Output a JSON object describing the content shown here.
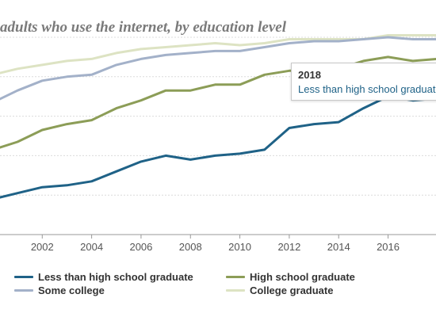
{
  "chart_data": {
    "type": "line",
    "title": "adults who use the internet, by education level",
    "x": [
      2000,
      2001,
      2002,
      2003,
      2004,
      2005,
      2006,
      2007,
      2008,
      2009,
      2010,
      2011,
      2012,
      2013,
      2014,
      2015,
      2016,
      2017,
      2018
    ],
    "x_ticks": [
      "2002",
      "2004",
      "2006",
      "2008",
      "2010",
      "2012",
      "2014",
      "2016"
    ],
    "xlim": [
      2000.29,
      2017.94
    ],
    "ylim": [
      0,
      100
    ],
    "grid": true,
    "legend_position": "bottom",
    "series": [
      {
        "name": "Less than high school graduate",
        "color": "#1f6287",
        "values": [
          18,
          21,
          24,
          25,
          27,
          32,
          37,
          40,
          38,
          40,
          41,
          43,
          54,
          56,
          57,
          64,
          70,
          68,
          69
        ]
      },
      {
        "name": "High school graduate",
        "color": "#8c9d57",
        "values": [
          43,
          47,
          53,
          56,
          58,
          64,
          68,
          73,
          73,
          76,
          76,
          81,
          83,
          83,
          84,
          88,
          90,
          88,
          89
        ]
      },
      {
        "name": "Some college",
        "color": "#a3b1c9",
        "values": [
          67,
          73,
          78,
          80,
          81,
          86,
          89,
          91,
          92,
          93,
          93,
          95,
          97,
          98,
          98,
          99,
          100,
          99,
          99
        ]
      },
      {
        "name": "College graduate",
        "color": "#dde3c3",
        "values": [
          81,
          84,
          86,
          88,
          89,
          92,
          94,
          95,
          96,
          97,
          96,
          97,
          99,
          99,
          99,
          99,
          101,
          101,
          101
        ]
      }
    ]
  },
  "tooltip": {
    "year": "2018",
    "series_label": "Less than high school graduate",
    "series_color": "#1f6287"
  }
}
